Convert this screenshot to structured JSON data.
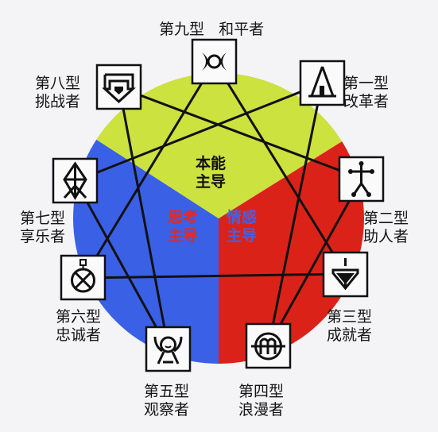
{
  "colors": {
    "instinct": "#cbe23f",
    "thinking": "#3a60e6",
    "feeling": "#db2218",
    "line": "#111111",
    "background": "#f4f3f6"
  },
  "centers": {
    "instinct": {
      "line1": "本能",
      "line2": "主导"
    },
    "thinking": {
      "line1": "思考",
      "line2": "主导"
    },
    "feeling": {
      "line1": "情感",
      "line2": "主导"
    }
  },
  "types": [
    {
      "id": 9,
      "number": "第九型",
      "name": "和平者",
      "icon": "double-crescent-icon"
    },
    {
      "id": 1,
      "number": "第一型",
      "name": "改革者",
      "icon": "tower-icon"
    },
    {
      "id": 2,
      "number": "第二型",
      "name": "助人者",
      "icon": "stick-figure-icon"
    },
    {
      "id": 3,
      "number": "第三型",
      "name": "成就者",
      "icon": "spinning-top-icon"
    },
    {
      "id": 4,
      "number": "第四型",
      "name": "浪漫者",
      "icon": "circled-m-icon"
    },
    {
      "id": 5,
      "number": "第五型",
      "name": "观察者",
      "icon": "observer-face-icon"
    },
    {
      "id": 6,
      "number": "第六型",
      "name": "忠诚者",
      "icon": "circled-x-icon"
    },
    {
      "id": 7,
      "number": "第七型",
      "name": "享乐者",
      "icon": "diamond-cross-icon"
    },
    {
      "id": 8,
      "number": "第八型",
      "name": "挑战者",
      "icon": "shield-arrow-icon"
    }
  ]
}
